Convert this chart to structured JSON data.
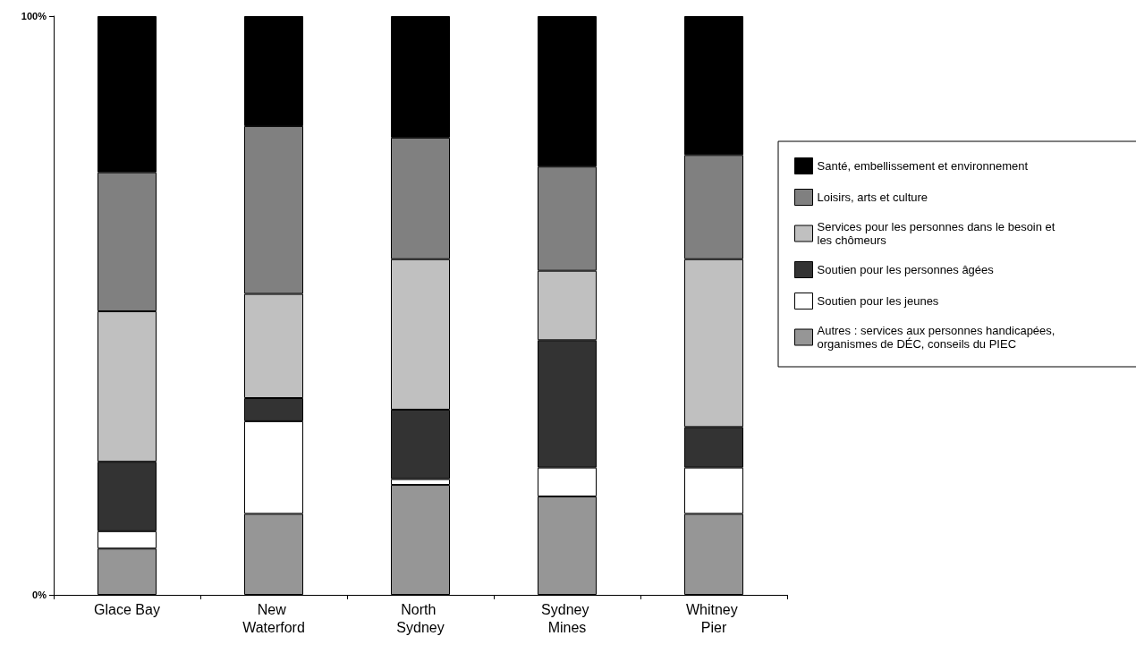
{
  "chart_data": {
    "type": "bar",
    "stacked": true,
    "categories": [
      "Glace Bay",
      "New Waterford",
      "North Sydney",
      "Sydney Mines",
      "Whitney Pier"
    ],
    "series": [
      {
        "name": "Autres : services aux personnes handicapées, organismes de DÉC, conseils du PIEC",
        "color": "#969696",
        "values": [
          8,
          14,
          19,
          17,
          14
        ]
      },
      {
        "name": "Soutien pour les jeunes",
        "color": "#ffffff",
        "values": [
          3,
          16,
          1,
          5,
          8
        ]
      },
      {
        "name": "Soutien pour les personnes âgées",
        "color": "#333333",
        "values": [
          12,
          4,
          12,
          22,
          7
        ]
      },
      {
        "name": "Services pour les personnes dans le besoin et les chômeurs",
        "color": "#c0c0c0",
        "values": [
          26,
          18,
          26,
          12,
          29
        ]
      },
      {
        "name": "Loisirs, arts et culture",
        "color": "#808080",
        "values": [
          24,
          29,
          21,
          18,
          18
        ]
      },
      {
        "name": "Santé, embellissement et environnement",
        "color": "#000000",
        "values": [
          27,
          19,
          21,
          26,
          24
        ]
      }
    ],
    "ylim": [
      0,
      100
    ],
    "yticks": [
      {
        "value": 0,
        "label": "0%"
      },
      {
        "value": 100,
        "label": "100%"
      }
    ],
    "grid": false,
    "legend": "right"
  }
}
